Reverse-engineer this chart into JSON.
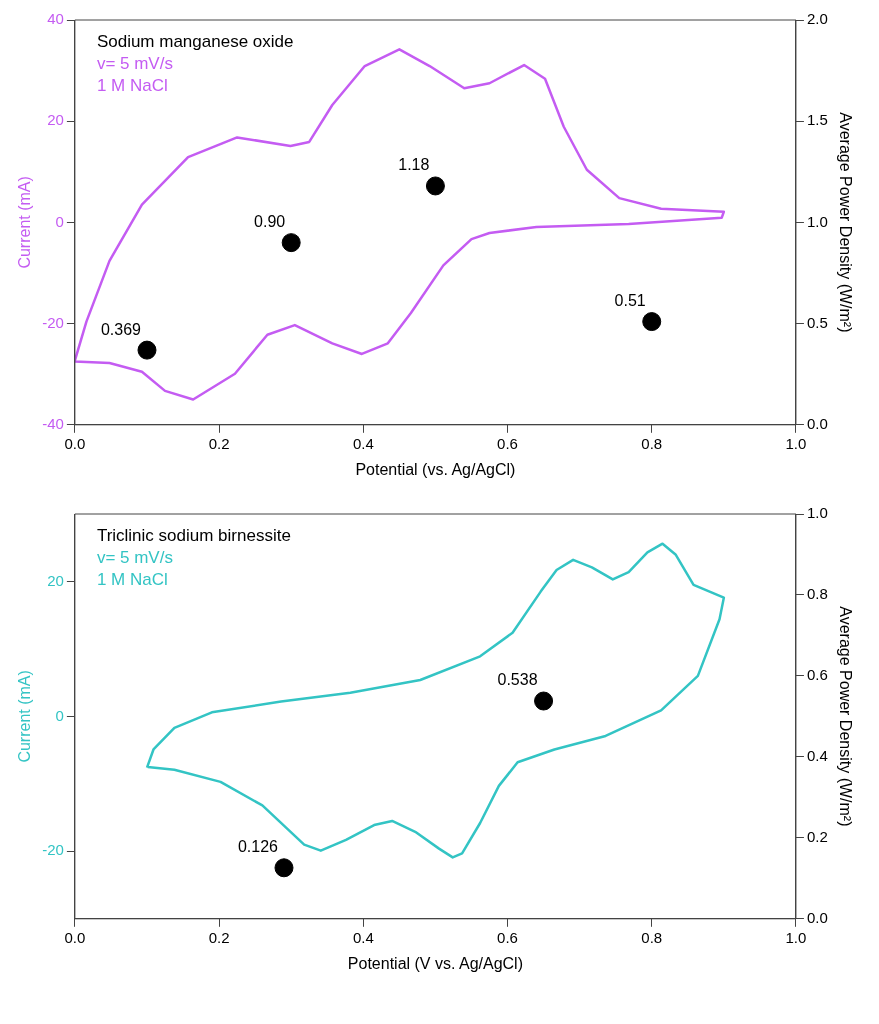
{
  "chart_data": [
    {
      "type": "line",
      "xlabel": "Potential (vs. Ag/AgCl)",
      "ylabel": "Current (mA)",
      "y2label": "Average Power Density (W/m²)",
      "annotations": [
        "Sodium manganese oxide",
        "v= 5 mV/s",
        "1 M NaCl"
      ],
      "xlim": [
        0,
        1
      ],
      "xticks": [
        {
          "value": 0,
          "label": "0.0"
        },
        {
          "value": 0.2,
          "label": "0.2"
        },
        {
          "value": 0.4,
          "label": "0.4"
        },
        {
          "value": 0.6,
          "label": "0.6"
        },
        {
          "value": 0.8,
          "label": "0.8"
        },
        {
          "value": 1,
          "label": "1.0"
        }
      ],
      "ylim": [
        -40,
        40
      ],
      "yticks": [
        -40,
        -20,
        0,
        20,
        40
      ],
      "y2lim": [
        0,
        2
      ],
      "y2ticks": [
        {
          "value": 0,
          "label": "0.0"
        },
        {
          "value": 0.5,
          "label": "0.5"
        },
        {
          "value": 1,
          "label": "1.0"
        },
        {
          "value": 1.5,
          "label": "1.5"
        },
        {
          "value": 2,
          "label": "2.0"
        }
      ],
      "grid": false,
      "legend": false,
      "series": [
        {
          "color": "#c45cf2",
          "line_style": "solid",
          "marker": "none",
          "x": [
            0,
            0.016,
            0.048,
            0.093,
            0.157,
            0.225,
            0.299,
            0.325,
            0.357,
            0.402,
            0.45,
            0.492,
            0.54,
            0.575,
            0.623,
            0.652,
            0.678,
            0.71,
            0.755,
            0.813,
            0.9,
            0.897,
            0.768,
            0.64,
            0.575,
            0.55,
            0.511,
            0.466,
            0.434,
            0.398,
            0.357,
            0.305,
            0.267,
            0.222,
            0.164,
            0.125,
            0.093,
            0.048,
            0
          ],
          "values": [
            -27.3,
            -19.6,
            -7.6,
            3.5,
            12.9,
            16.8,
            15.1,
            15.9,
            23.2,
            30.9,
            34.2,
            30.9,
            26.5,
            27.5,
            31.1,
            28.4,
            18.9,
            10.4,
            4.8,
            2.7,
            2.1,
            0.9,
            -0.3,
            -0.9,
            -2.1,
            -3.3,
            -8.5,
            -17.9,
            -23.9,
            -26,
            -23.9,
            -20.3,
            -22.2,
            -29.9,
            -35,
            -33.3,
            -29.5,
            -27.8,
            -27.5
          ]
        },
        {
          "type": "scatter",
          "axis": "y2",
          "color": "#000000",
          "marker": "circle",
          "x": [
            0.1,
            0.3,
            0.5,
            0.8
          ],
          "values": [
            0.369,
            0.9,
            1.18,
            0.51
          ],
          "value_labels": [
            "0.369",
            "0.90",
            "1.18",
            "0.51"
          ]
        }
      ]
    },
    {
      "type": "line",
      "xlabel": "Potential (V vs. Ag/AgCl)",
      "ylabel": "Current (mA)",
      "y2label": "Average Power Density (W/m²)",
      "annotations": [
        "Triclinic sodium birnessite",
        "v= 5 mV/s",
        "1 M NaCl"
      ],
      "xlim": [
        0,
        1
      ],
      "xticks": [
        {
          "value": 0,
          "label": "0.0"
        },
        {
          "value": 0.2,
          "label": "0.2"
        },
        {
          "value": 0.4,
          "label": "0.4"
        },
        {
          "value": 0.6,
          "label": "0.6"
        },
        {
          "value": 0.8,
          "label": "0.8"
        },
        {
          "value": 1,
          "label": "1.0"
        }
      ],
      "ylim": [
        -30,
        30
      ],
      "yticks": [
        -20,
        0,
        20
      ],
      "y2lim": [
        0,
        1
      ],
      "y2ticks": [
        {
          "value": 0,
          "label": "0.0"
        },
        {
          "value": 0.2,
          "label": "0.2"
        },
        {
          "value": 0.4,
          "label": "0.4"
        },
        {
          "value": 0.6,
          "label": "0.6"
        },
        {
          "value": 0.8,
          "label": "0.8"
        },
        {
          "value": 1,
          "label": "1.0"
        }
      ],
      "grid": false,
      "legend": false,
      "series": [
        {
          "color": "#33c4c4",
          "line_style": "solid",
          "marker": "none",
          "x": [
            0.1,
            0.109,
            0.138,
            0.19,
            0.286,
            0.382,
            0.479,
            0.562,
            0.607,
            0.646,
            0.668,
            0.691,
            0.717,
            0.746,
            0.768,
            0.794,
            0.815,
            0.833,
            0.858,
            0.9,
            0.894,
            0.864,
            0.813,
            0.736,
            0.665,
            0.614,
            0.588,
            0.562,
            0.537,
            0.524,
            0.505,
            0.472,
            0.44,
            0.415,
            0.376,
            0.341,
            0.318,
            0.26,
            0.202,
            0.138,
            0.101
          ],
          "values": [
            -7.6,
            -4.9,
            -1.7,
            0.6,
            2.2,
            3.5,
            5.4,
            8.9,
            12.4,
            18.5,
            21.7,
            23.2,
            22.1,
            20.3,
            21.4,
            24.3,
            25.6,
            24,
            19.5,
            17.6,
            14.4,
            6,
            0.9,
            -2.9,
            -4.9,
            -6.8,
            -10.3,
            -15.8,
            -20.3,
            -20.9,
            -19.6,
            -17.1,
            -15.5,
            -16.1,
            -18.3,
            -19.9,
            -19,
            -13.2,
            -9.7,
            -7.9,
            -7.5
          ]
        },
        {
          "type": "scatter",
          "axis": "y2",
          "color": "#000000",
          "marker": "circle",
          "x": [
            0.29,
            0.65
          ],
          "values": [
            0.126,
            0.538
          ],
          "value_labels": [
            "0.126",
            "0.538"
          ]
        }
      ]
    }
  ]
}
